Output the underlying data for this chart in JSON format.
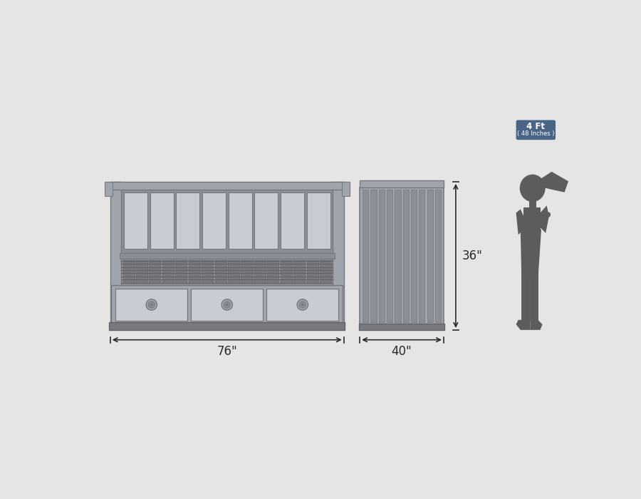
{
  "bg_color": "#e5e5e5",
  "bed_color": "#a0a4ac",
  "bed_dark": "#78797e",
  "bed_mid": "#8a8e96",
  "bed_light": "#b8bcc4",
  "bed_lighter": "#c8ccd4",
  "bed_shadow": "#606268",
  "dim_color": "#2a2a2a",
  "silhouette_color": "#5c5c5c",
  "label_bg_color": "#4a6485",
  "label_text_color": "#ffffff",
  "dim_76": "76\"",
  "dim_40": "40\"",
  "dim_36": "36\"",
  "label_4ft": "4 Ft",
  "label_48in": "( 48 Inches )"
}
